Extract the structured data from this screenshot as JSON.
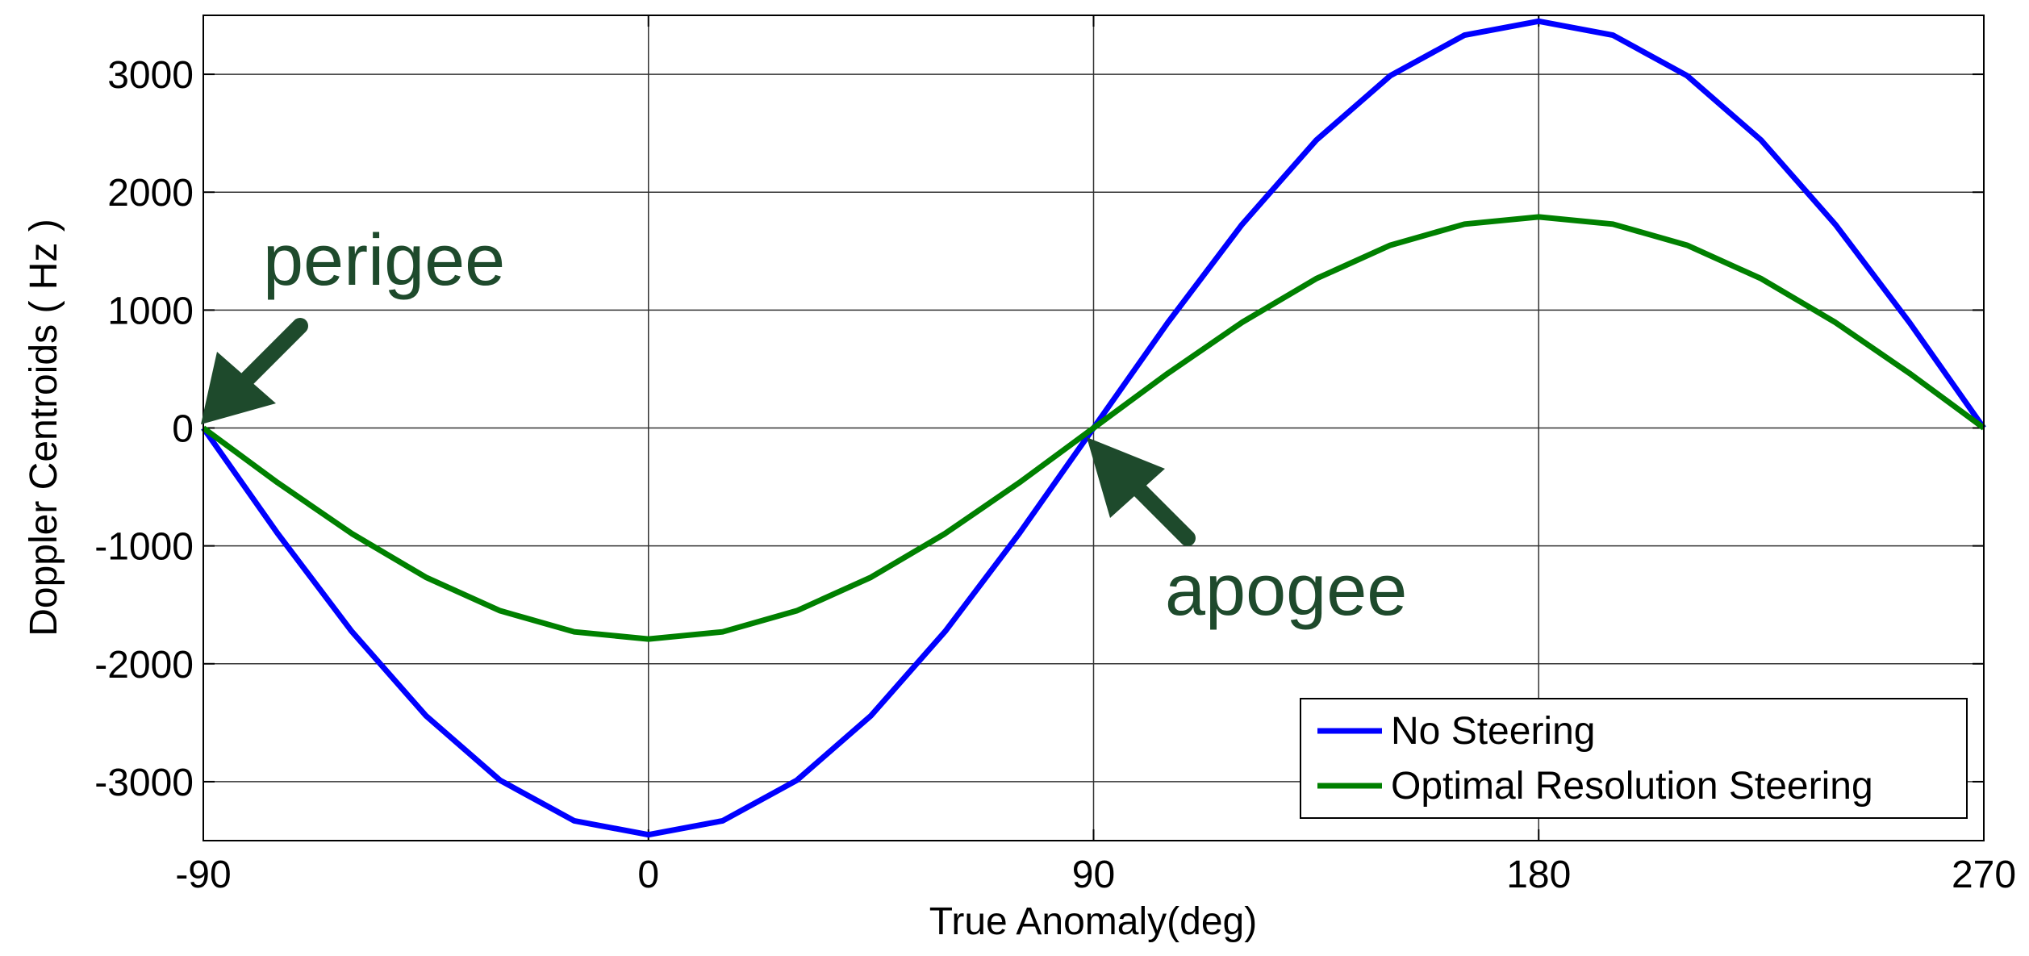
{
  "chart_data": {
    "type": "line",
    "xlabel": "True Anomaly(deg)",
    "ylabel": "Doppler Centroids ( Hz )",
    "x": [
      -90,
      -75,
      -60,
      -45,
      -30,
      -15,
      0,
      15,
      30,
      45,
      60,
      75,
      90,
      105,
      120,
      135,
      150,
      165,
      180,
      195,
      210,
      225,
      240,
      255,
      270
    ],
    "series": [
      {
        "name": "No Steering",
        "color": "#0000ff",
        "values": [
          0,
          -893,
          -1725,
          -2440,
          -2988,
          -3332,
          -3450,
          -3332,
          -2988,
          -2440,
          -1725,
          -893,
          0,
          893,
          1725,
          2440,
          2988,
          3332,
          3450,
          3332,
          2988,
          2440,
          1725,
          893,
          0
        ]
      },
      {
        "name": "Optimal Resolution Steering",
        "color": "#008000",
        "values": [
          0,
          -463,
          -895,
          -1266,
          -1550,
          -1729,
          -1790,
          -1729,
          -1550,
          -1266,
          -895,
          -463,
          0,
          463,
          895,
          1266,
          1550,
          1729,
          1790,
          1729,
          1550,
          1266,
          895,
          463,
          0
        ]
      }
    ],
    "xlim": [
      -90,
      270
    ],
    "xticks": [
      -90,
      0,
      90,
      180,
      270
    ],
    "ylim": [
      -3500,
      3500
    ],
    "yticks": [
      -3000,
      -2000,
      -1000,
      0,
      1000,
      2000,
      3000
    ],
    "grid": true,
    "legend": "lower right",
    "annotations": [
      "perigee",
      "apogee"
    ]
  }
}
